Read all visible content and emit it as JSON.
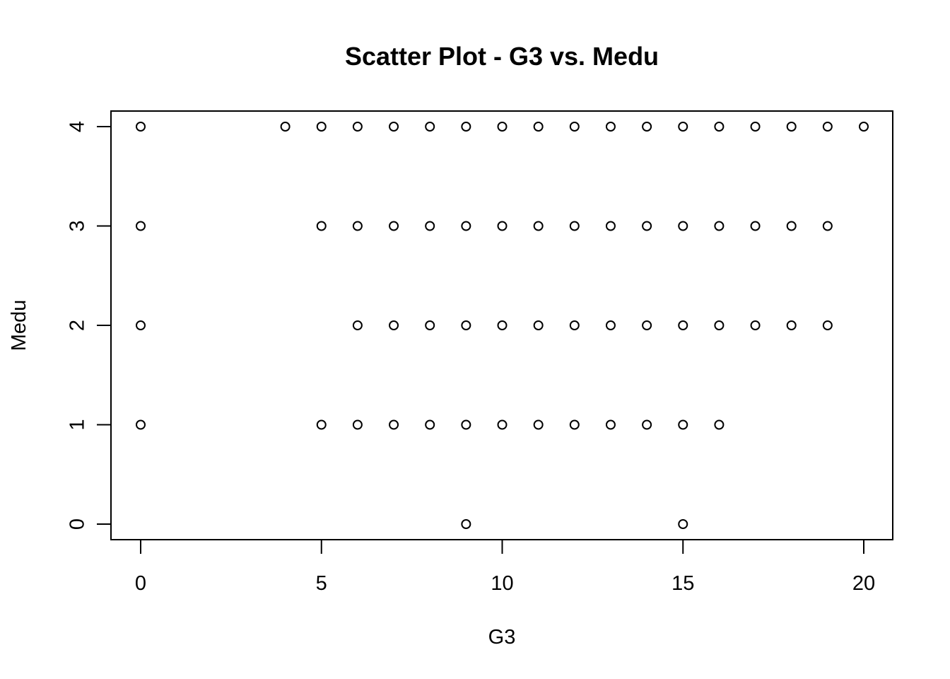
{
  "chart_data": {
    "type": "scatter",
    "title": "Scatter Plot - G3 vs. Medu",
    "xlabel": "G3",
    "ylabel": "Medu",
    "xlim": [
      0,
      20
    ],
    "ylim": [
      0,
      4
    ],
    "x_ticks": [
      0,
      5,
      10,
      15,
      20
    ],
    "y_ticks": [
      0,
      1,
      2,
      3,
      4
    ],
    "grid": false,
    "points": [
      [
        0,
        4
      ],
      [
        4,
        4
      ],
      [
        5,
        4
      ],
      [
        6,
        4
      ],
      [
        7,
        4
      ],
      [
        8,
        4
      ],
      [
        9,
        4
      ],
      [
        10,
        4
      ],
      [
        11,
        4
      ],
      [
        12,
        4
      ],
      [
        13,
        4
      ],
      [
        14,
        4
      ],
      [
        15,
        4
      ],
      [
        16,
        4
      ],
      [
        17,
        4
      ],
      [
        18,
        4
      ],
      [
        19,
        4
      ],
      [
        20,
        4
      ],
      [
        0,
        3
      ],
      [
        5,
        3
      ],
      [
        6,
        3
      ],
      [
        7,
        3
      ],
      [
        8,
        3
      ],
      [
        9,
        3
      ],
      [
        10,
        3
      ],
      [
        11,
        3
      ],
      [
        12,
        3
      ],
      [
        13,
        3
      ],
      [
        14,
        3
      ],
      [
        15,
        3
      ],
      [
        16,
        3
      ],
      [
        17,
        3
      ],
      [
        18,
        3
      ],
      [
        19,
        3
      ],
      [
        0,
        2
      ],
      [
        6,
        2
      ],
      [
        7,
        2
      ],
      [
        8,
        2
      ],
      [
        9,
        2
      ],
      [
        10,
        2
      ],
      [
        11,
        2
      ],
      [
        12,
        2
      ],
      [
        13,
        2
      ],
      [
        14,
        2
      ],
      [
        15,
        2
      ],
      [
        16,
        2
      ],
      [
        17,
        2
      ],
      [
        18,
        2
      ],
      [
        19,
        2
      ],
      [
        0,
        1
      ],
      [
        5,
        1
      ],
      [
        6,
        1
      ],
      [
        7,
        1
      ],
      [
        8,
        1
      ],
      [
        9,
        1
      ],
      [
        10,
        1
      ],
      [
        11,
        1
      ],
      [
        12,
        1
      ],
      [
        13,
        1
      ],
      [
        14,
        1
      ],
      [
        15,
        1
      ],
      [
        16,
        1
      ],
      [
        9,
        0
      ],
      [
        15,
        0
      ]
    ]
  }
}
